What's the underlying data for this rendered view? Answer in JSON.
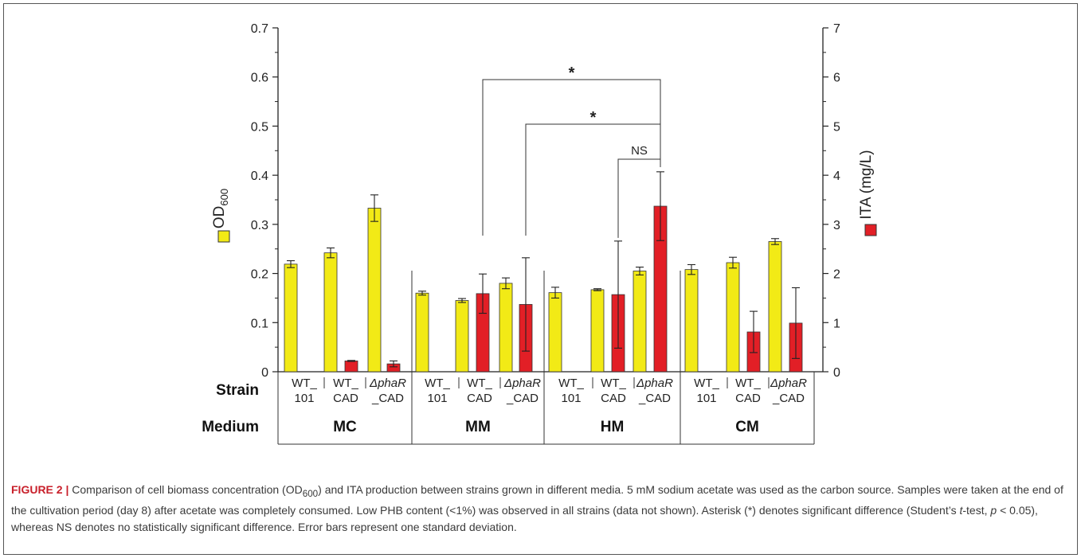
{
  "colors": {
    "od": "#f2ea16",
    "ita": "#e21f26",
    "axis": "#222222",
    "caption_lead": "#c8202b"
  },
  "icons": {
    "od_legend": "yellow-square-icon",
    "ita_legend": "red-square-icon"
  },
  "chart_data": {
    "type": "bar",
    "left_axis": {
      "label": "OD",
      "label_sub": "600",
      "ylim": [
        0,
        0.7
      ],
      "ticks": [
        "0",
        "0.1",
        "0.2",
        "0.3",
        "0.4",
        "0.5",
        "0.6",
        "0.7"
      ]
    },
    "right_axis": {
      "label": "ITA (mg/L)",
      "ylim": [
        0,
        7
      ],
      "ticks": [
        "0",
        "1",
        "2",
        "3",
        "4",
        "5",
        "6",
        "7"
      ]
    },
    "row_labels": {
      "strain": "Strain",
      "medium": "Medium"
    },
    "groups": [
      {
        "medium": "MC",
        "strains": [
          {
            "line1": "WT_",
            "line2": "101",
            "od": 0.219,
            "od_err": 0.007,
            "ita": null,
            "ita_err": null
          },
          {
            "line1": "WT_",
            "line2": "CAD",
            "od": 0.242,
            "od_err": 0.01,
            "ita": 0.22,
            "ita_err": 0.01
          },
          {
            "line1": "ΔphaR",
            "line2": "_CAD",
            "od": 0.333,
            "od_err": 0.027,
            "ita": 0.16,
            "ita_err": 0.06
          }
        ]
      },
      {
        "medium": "MM",
        "strains": [
          {
            "line1": "WT_",
            "line2": "101",
            "od": 0.16,
            "od_err": 0.004,
            "ita": null,
            "ita_err": null
          },
          {
            "line1": "WT_",
            "line2": "CAD",
            "od": 0.145,
            "od_err": 0.004,
            "ita": 1.59,
            "ita_err": 0.4
          },
          {
            "line1": "ΔphaR",
            "line2": "_CAD",
            "od": 0.18,
            "od_err": 0.011,
            "ita": 1.37,
            "ita_err": 0.95
          }
        ]
      },
      {
        "medium": "HM",
        "strains": [
          {
            "line1": "WT_",
            "line2": "101",
            "od": 0.161,
            "od_err": 0.011,
            "ita": null,
            "ita_err": null
          },
          {
            "line1": "WT_",
            "line2": "CAD",
            "od": 0.167,
            "od_err": 0.002,
            "ita": 1.57,
            "ita_err": 1.09
          },
          {
            "line1": "ΔphaR",
            "line2": "_CAD",
            "od": 0.205,
            "od_err": 0.008,
            "ita": 3.37,
            "ita_err": 0.7
          }
        ]
      },
      {
        "medium": "CM",
        "strains": [
          {
            "line1": "WT_",
            "line2": "101",
            "od": 0.208,
            "od_err": 0.01,
            "ita": null,
            "ita_err": null
          },
          {
            "line1": "WT_",
            "line2": "CAD",
            "od": 0.222,
            "od_err": 0.011,
            "ita": 0.81,
            "ita_err": 0.42
          },
          {
            "line1": "ΔphaR",
            "line2": "_CAD",
            "od": 0.265,
            "od_err": 0.006,
            "ita": 0.99,
            "ita_err": 0.72
          }
        ]
      }
    ],
    "annotations": [
      {
        "text": "*",
        "from": "MM / WT_ CAD",
        "to": "HM / ΔphaR _CAD"
      },
      {
        "text": "*",
        "from": "MM / ΔphaR _CAD",
        "to": "HM / ΔphaR _CAD"
      },
      {
        "text": "NS",
        "from": "HM / WT_ CAD",
        "to": "HM / ΔphaR _CAD"
      }
    ]
  },
  "caption": {
    "lead": "FIGURE 2 |",
    "p1": " Comparison of cell biomass concentration (OD",
    "sub1": "600",
    "p2": ") and ITA production between strains grown in different media. 5 mM sodium acetate was used as the carbon source. Samples were taken at the end of the cultivation period (day 8) after acetate was completely consumed. Low PHB content (<1%) was observed in all strains (data not shown). Asterisk (*) denotes significant difference (Student’s ",
    "ital1": "t",
    "p3": "-test, ",
    "ital2": "p",
    "p4": " < 0.05), whereas NS denotes no statistically significant difference. Error bars represent one standard deviation."
  }
}
